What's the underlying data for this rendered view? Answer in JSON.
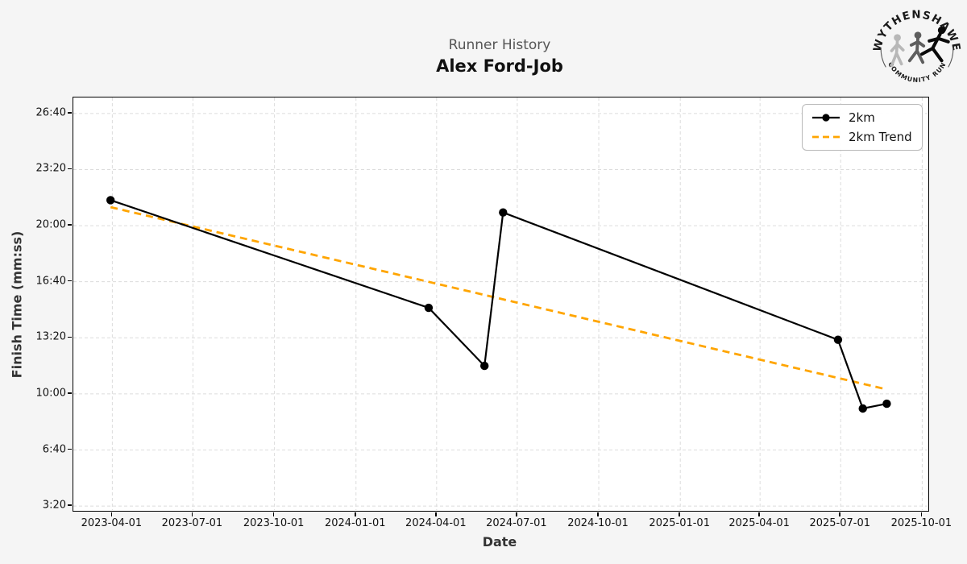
{
  "header": {
    "title": "Runner History",
    "runner_name": "Alex Ford-Job"
  },
  "logo": {
    "top_text": "WYTHENSHAWE",
    "bottom_text": "COMMUNITY RUN"
  },
  "legend": {
    "items": [
      {
        "label": "2km"
      },
      {
        "label": "2km Trend"
      }
    ]
  },
  "colors": {
    "series": "#000000",
    "trend": "#FFA500",
    "grid": "#dcdcdc",
    "figure_bg": "#f5f5f5",
    "plot_bg": "#ffffff",
    "title_gray": "#555555"
  },
  "chart_data": {
    "type": "line",
    "title": "Runner History",
    "subtitle": "Alex Ford-Job",
    "xlabel": "Date",
    "ylabel": "Finish Time (mm:ss)",
    "grid": true,
    "legend_position": "upper right",
    "x_ticks": [
      "2023-04-01",
      "2023-07-01",
      "2023-10-01",
      "2024-01-01",
      "2024-04-01",
      "2024-07-01",
      "2024-10-01",
      "2025-01-01",
      "2025-04-01",
      "2025-07-01",
      "2025-10-01"
    ],
    "y_ticks": [
      {
        "label": "3:20",
        "seconds": 200
      },
      {
        "label": "6:40",
        "seconds": 400
      },
      {
        "label": "10:00",
        "seconds": 600
      },
      {
        "label": "13:20",
        "seconds": 800
      },
      {
        "label": "16:40",
        "seconds": 1000
      },
      {
        "label": "20:00",
        "seconds": 1200
      },
      {
        "label": "23:20",
        "seconds": 1400
      },
      {
        "label": "26:40",
        "seconds": 1600
      }
    ],
    "x_domain": [
      "2023-02-16",
      "2025-10-07"
    ],
    "y_domain_seconds": [
      186,
      1657
    ],
    "series": [
      {
        "name": "2km",
        "style": "solid-marker",
        "color_key": "series",
        "points": [
          {
            "date": "2023-03-30",
            "time": "21:31",
            "seconds": 1291
          },
          {
            "date": "2024-03-23",
            "time": "15:07",
            "seconds": 907
          },
          {
            "date": "2024-05-25",
            "time": "11:40",
            "seconds": 700
          },
          {
            "date": "2024-06-15",
            "time": "20:47",
            "seconds": 1247
          },
          {
            "date": "2025-06-28",
            "time": "13:13",
            "seconds": 793
          },
          {
            "date": "2025-07-26",
            "time": "9:08",
            "seconds": 548
          },
          {
            "date": "2025-08-22",
            "time": "9:25",
            "seconds": 565
          }
        ]
      },
      {
        "name": "2km Trend",
        "style": "dashed",
        "color_key": "trend",
        "points": [
          {
            "date": "2023-03-30",
            "time": "21:06",
            "seconds": 1266
          },
          {
            "date": "2025-08-22",
            "time": "10:16",
            "seconds": 616
          }
        ]
      }
    ]
  }
}
